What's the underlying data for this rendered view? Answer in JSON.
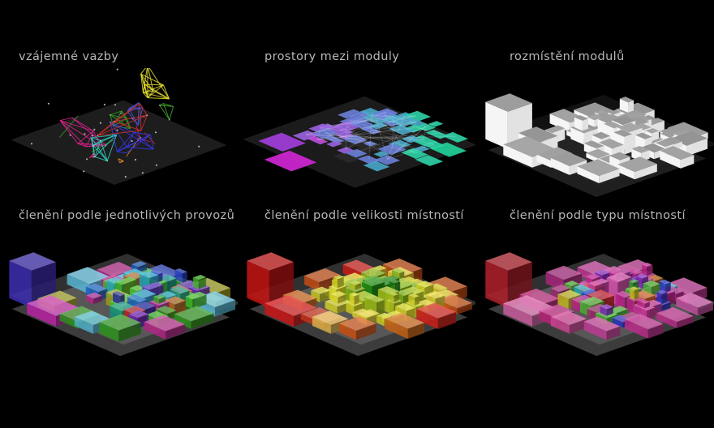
{
  "meta": {
    "background": "#000000",
    "label_color": "#b6b6b6"
  },
  "panels": [
    {
      "id": "vazby",
      "label": "vzájemné vazby",
      "type": "network",
      "seed": 7,
      "floor": {
        "fill": "#1d1d1d"
      },
      "dot_color": "#c9c9c9",
      "stray_colors": [
        "#cf2f2f",
        "#d9218c",
        "#2f9e22",
        "#d8862a",
        "#b82470",
        "#3fae2a"
      ],
      "clusters": [
        {
          "c": "#e8df2e",
          "u": 6.2,
          "v": 2.8,
          "z": 62,
          "r": 1.3,
          "rz": 22,
          "n": 8
        },
        {
          "c": "#d9218c",
          "u": 3.2,
          "v": 7.5,
          "z": 8,
          "r": 2.2,
          "rz": 26,
          "n": 7
        },
        {
          "c": "#2bd3c4",
          "u": 6.3,
          "v": 7.8,
          "z": 6,
          "r": 1.5,
          "rz": 22,
          "n": 6
        },
        {
          "c": "#2f9e22",
          "u": 4.9,
          "v": 5.2,
          "z": 26,
          "r": 0.9,
          "rz": 14,
          "n": 5
        },
        {
          "c": "#3fae2a",
          "u": 8.3,
          "v": 2.9,
          "z": 40,
          "r": 0.8,
          "rz": 12,
          "n": 4
        },
        {
          "c": "#3636e8",
          "u": 7.8,
          "v": 5.6,
          "z": 14,
          "r": 1.7,
          "rz": 24,
          "n": 7
        },
        {
          "c": "#4b55e0",
          "u": 6.6,
          "v": 4.4,
          "z": 38,
          "r": 1.2,
          "rz": 16,
          "n": 5
        },
        {
          "c": "#cf2f2f",
          "u": 6.0,
          "v": 5.0,
          "z": 30,
          "r": 2.6,
          "rz": 18,
          "n": 5
        },
        {
          "c": "#d8862a",
          "u": 8.6,
          "v": 7.6,
          "z": 4,
          "r": 0.8,
          "rz": 10,
          "n": 4
        },
        {
          "c": "#c02470",
          "u": 6.8,
          "v": 9.6,
          "z": 2,
          "r": 0.9,
          "rz": 12,
          "n": 4
        }
      ]
    },
    {
      "id": "prostory",
      "label": "prostory mezi moduly",
      "type": "flat",
      "seed": 13,
      "floor": {
        "fill": "#1b1b1b"
      },
      "dark_tile": "#282828",
      "gradient": [
        "#d12ad8",
        "#c04fe0",
        "#9a63e0",
        "#6b7fd8",
        "#48a8c8",
        "#2fd3a8",
        "#22d49c"
      ],
      "big_left": "#a53fe0",
      "big_front": "#d428d8",
      "mesh_color": "#ffffff"
    },
    {
      "id": "rozmisteni",
      "label": "rozmístění modulů",
      "type": "boxes",
      "seed": 5,
      "style": "white",
      "floor_a": "#111111",
      "floor_b": "#2a2a2a",
      "white": {
        "top": "#a0a0a0",
        "left": "#f5f5f5",
        "right": "#e2e2e2"
      },
      "big_cube": "#f2f2f2",
      "front_flats": [
        "#f2f2f2",
        "#f2f2f2"
      ]
    },
    {
      "id": "provozy",
      "label": "členění podle jednotlivých provozů",
      "type": "boxes",
      "seed": 9,
      "style": "byRandom",
      "floor_a": "#303030",
      "floor_b": "#8e8e8e",
      "palette": [
        "#3ab020",
        "#46c228",
        "#2f9e1c",
        "#56cc3a",
        "#3ab020",
        "#2a46cc",
        "#2066cc",
        "#28b0c8",
        "#60c8e8",
        "#18988a",
        "#c22890",
        "#cc2828",
        "#cc6418",
        "#a8a820",
        "#6a28c8",
        "#2828a0",
        "#46c228"
      ],
      "big_cube": "#4433c4",
      "front_flats": [
        "#cc28b4",
        "#58bede"
      ],
      "periphery": [
        "#a8a820",
        "#18988a",
        "#2a46cc",
        "#c22890",
        "#56cc3a",
        "#60c8e8",
        "#b4b428",
        "#2f9e1c"
      ]
    },
    {
      "id": "velikost",
      "label": "členění podle velikosti místností",
      "type": "boxes",
      "seed": 3,
      "style": "bySize",
      "floor_a": "#303030",
      "floor_b": "#8e8e8e",
      "size_colors": {
        "small": [
          "#177a10",
          "#238c14",
          "#2f9e18",
          "#1e8a14"
        ],
        "mid": [
          "#86b818",
          "#a2c41c",
          "#b8cc1e"
        ],
        "large": [
          "#d8d824",
          "#e4e02a",
          "#e8d83a"
        ],
        "outer": [
          "#e02018",
          "#d85414",
          "#cc3a20",
          "#d86a14"
        ]
      },
      "big_cube": "#dc1818",
      "front_flats": [
        "#e01818",
        "#e8c050"
      ]
    },
    {
      "id": "typ",
      "label": "členění podle typu místností",
      "type": "boxes",
      "seed": 21,
      "style": "byRandom",
      "floor_a": "#303030",
      "floor_b": "#8e8e8e",
      "palette": [
        "#c42490",
        "#d03ca0",
        "#b02888",
        "#c42490",
        "#d85ab0",
        "#a82878",
        "#2838cc",
        "#2838cc",
        "#34ac28",
        "#48c434",
        "#cc2020",
        "#d0c820",
        "#28b4c4",
        "#7a28c4",
        "#cc6c18",
        "#c42490",
        "#d03ca0"
      ],
      "big_cube": "#c42430",
      "front_flats": [
        "#de66ac",
        "#d84a9c"
      ],
      "periphery": [
        "#c42490",
        "#cf3f9f",
        "#b82a88",
        "#d85ab0",
        "#c2247f",
        "#d03ca0",
        "#b02888",
        "#cb2f95"
      ]
    }
  ]
}
